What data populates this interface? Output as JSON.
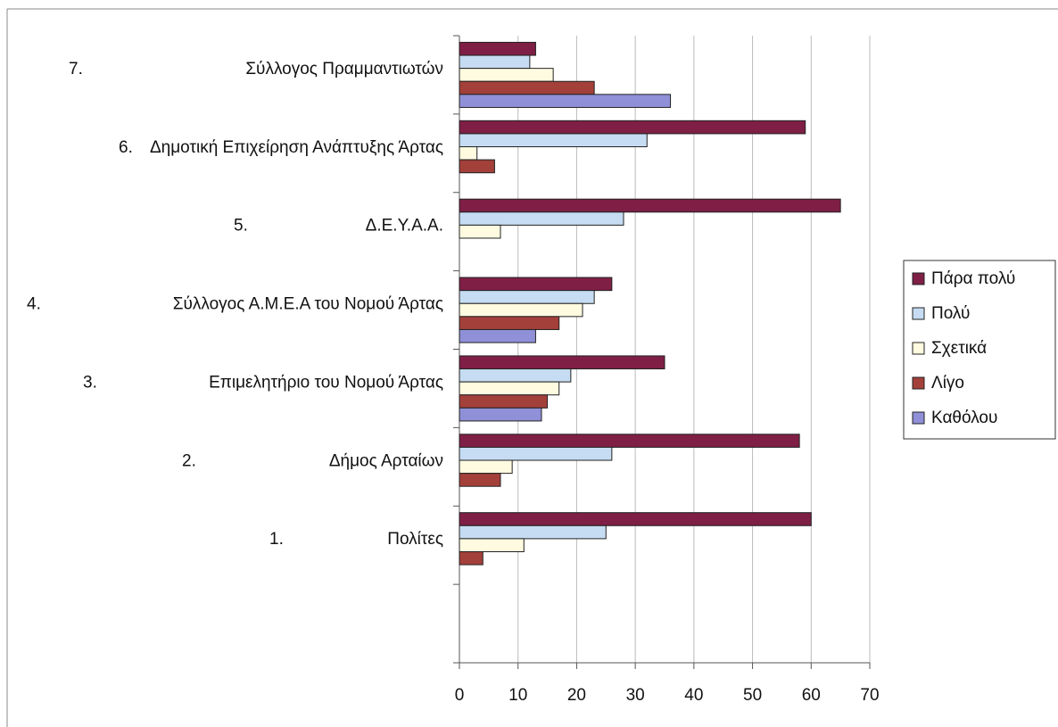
{
  "chart_data": {
    "type": "bar",
    "orientation": "horizontal",
    "categories": [
      "Σύλλογος Πραμμαντιωτών",
      "Δημοτική Επιχείρηση Ανάπτυξης Άρτας",
      "Δ.Ε.Υ.Α.Α.",
      "Σύλλογος Α.Μ.Ε.Α του Νομού Άρτας",
      "Επιμελητήριο του Νομού Άρτας",
      "Δήμος Αρταίων",
      "Πολίτες",
      null
    ],
    "category_numbers": [
      "7.",
      "6.",
      "5.",
      "4.",
      "3.",
      "2.",
      "1.",
      null
    ],
    "series": [
      {
        "name": "Πάρα πολύ",
        "color": "#7f1f45",
        "values": [
          13,
          59,
          65,
          26,
          35,
          58,
          60,
          null
        ]
      },
      {
        "name": "Πολύ",
        "color": "#c6dcf2",
        "values": [
          12,
          32,
          28,
          23,
          19,
          26,
          25,
          null
        ]
      },
      {
        "name": "Σχετικά",
        "color": "#fffbe0",
        "values": [
          16,
          3,
          7,
          21,
          17,
          9,
          11,
          null
        ]
      },
      {
        "name": "Λίγο",
        "color": "#a3403a",
        "values": [
          23,
          6,
          0,
          17,
          15,
          7,
          4,
          null
        ]
      },
      {
        "name": "Καθόλου",
        "color": "#9090d8",
        "values": [
          36,
          0,
          0,
          13,
          14,
          0,
          0,
          null
        ]
      }
    ],
    "xlim": [
      0,
      70
    ],
    "xticks": [
      0,
      10,
      20,
      30,
      40,
      50,
      60,
      70
    ],
    "grid": true,
    "legend": "right"
  }
}
